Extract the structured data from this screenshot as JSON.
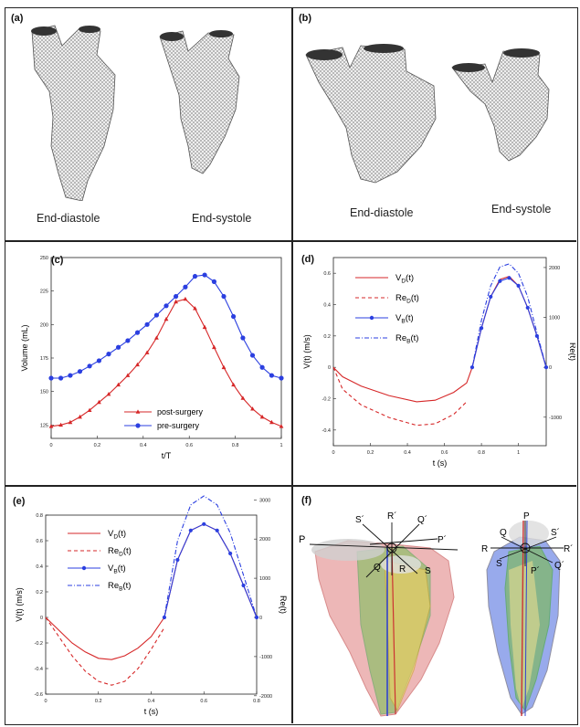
{
  "panels": {
    "a": {
      "label": "(a)",
      "captions": [
        "End-diastole",
        "End-systole"
      ]
    },
    "b": {
      "label": "(b)",
      "captions": [
        "End-diastole",
        "End-systole"
      ]
    },
    "c": {
      "label": "(c)"
    },
    "d": {
      "label": "(d)"
    },
    "e": {
      "label": "(e)"
    },
    "f": {
      "label": "(f)"
    }
  },
  "colors": {
    "red": "#d62728",
    "blue": "#2b3fe0",
    "mesh": "#555555"
  },
  "chart_data": [
    {
      "id": "c",
      "type": "line",
      "xlabel": "t/T",
      "ylabel": "Volume (mL)",
      "xlim": [
        0,
        1
      ],
      "ylim": [
        115,
        250
      ],
      "xticks": [
        "0",
        "0.2",
        "0.4",
        "0.6",
        "0.8",
        "1"
      ],
      "yticks": [
        "125",
        "150",
        "175",
        "200",
        "225",
        "250"
      ],
      "x": [
        0,
        0.042,
        0.083,
        0.125,
        0.167,
        0.208,
        0.25,
        0.292,
        0.333,
        0.375,
        0.417,
        0.458,
        0.5,
        0.542,
        0.583,
        0.625,
        0.667,
        0.708,
        0.75,
        0.792,
        0.833,
        0.875,
        0.917,
        0.958,
        1
      ],
      "series": [
        {
          "name": "post-surgery",
          "color": "#d62728",
          "marker": "triangle",
          "values": [
            124,
            125,
            127,
            131,
            136,
            142,
            148,
            155,
            162,
            170,
            179,
            190,
            204,
            217,
            219,
            212,
            198,
            183,
            168,
            155,
            145,
            137,
            131,
            127,
            124
          ]
        },
        {
          "name": "pre-surgery",
          "color": "#2b3fe0",
          "marker": "circle",
          "values": [
            160,
            160,
            162,
            165,
            169,
            173,
            178,
            183,
            188,
            194,
            200,
            207,
            214,
            221,
            228,
            236,
            237,
            232,
            221,
            206,
            190,
            177,
            168,
            162,
            160
          ]
        }
      ],
      "legend": "bottom-right"
    },
    {
      "id": "d",
      "type": "line",
      "xlabel": "t (s)",
      "ylabel": "V(t) (m/s)",
      "y2label": "Re(t)",
      "xlim": [
        0,
        1.15
      ],
      "ylim": [
        -0.5,
        0.7
      ],
      "y2lim": [
        -1400,
        2500
      ],
      "xticks": [
        "0",
        "0.2",
        "0.4",
        "0.6",
        "0.8",
        "1"
      ],
      "yticks": [
        "-0.4",
        "-0.2",
        "0",
        "0.2",
        "0.4",
        "0.6"
      ],
      "y2ticks": [
        "-1000",
        "0",
        "1000",
        "2000"
      ],
      "series": [
        {
          "name": "V_D(t)",
          "color": "#d62728",
          "style": "solid",
          "x": [
            0,
            0.05,
            0.15,
            0.3,
            0.45,
            0.55,
            0.65,
            0.72,
            0.75,
            0.8,
            0.85,
            0.9,
            0.95,
            1.0,
            1.05,
            1.1,
            1.15
          ],
          "values": [
            0,
            -0.06,
            -0.12,
            -0.18,
            -0.22,
            -0.21,
            -0.16,
            -0.1,
            0.0,
            0.25,
            0.45,
            0.56,
            0.58,
            0.52,
            0.38,
            0.2,
            0.0
          ]
        },
        {
          "name": "Re_D(t)",
          "color": "#d62728",
          "style": "dashed",
          "x": [
            0,
            0.05,
            0.15,
            0.3,
            0.45,
            0.55,
            0.65,
            0.72
          ],
          "values": [
            0,
            -0.14,
            -0.24,
            -0.32,
            -0.37,
            -0.36,
            -0.3,
            -0.22
          ]
        },
        {
          "name": "V_B(t)",
          "color": "#2b3fe0",
          "style": "solid-marker",
          "x": [
            0.75,
            0.8,
            0.85,
            0.9,
            0.95,
            1.0,
            1.05,
            1.1,
            1.15
          ],
          "values": [
            0.0,
            0.25,
            0.45,
            0.55,
            0.57,
            0.52,
            0.38,
            0.2,
            0.0
          ]
        },
        {
          "name": "Re_B(t)",
          "color": "#2b3fe0",
          "style": "dashdot",
          "x": [
            0.75,
            0.8,
            0.85,
            0.9,
            0.95,
            1.0,
            1.05,
            1.1,
            1.15
          ],
          "values": [
            0.0,
            0.3,
            0.52,
            0.64,
            0.66,
            0.6,
            0.45,
            0.22,
            0.0
          ]
        }
      ],
      "legend": "top-left"
    },
    {
      "id": "e",
      "type": "line",
      "xlabel": "t (s)",
      "ylabel": "V(t) (m/s)",
      "y2label": "Re(t)",
      "xlim": [
        0,
        0.8
      ],
      "ylim": [
        -0.6,
        0.8
      ],
      "xticks": [
        "0",
        "0.2",
        "0.4",
        "0.6",
        "0.8"
      ],
      "yticks": [
        "-0.6",
        "-0.4",
        "-0.2",
        "0",
        "0.2",
        "0.4",
        "0.6",
        "0.8"
      ],
      "y2ticks": [
        "-2000",
        "-1000",
        "0",
        "1000",
        "2000",
        "3000"
      ],
      "series": [
        {
          "name": "V_D(t)",
          "color": "#d62728",
          "style": "solid",
          "x": [
            0,
            0.05,
            0.1,
            0.15,
            0.2,
            0.25,
            0.3,
            0.35,
            0.4,
            0.45,
            0.5,
            0.55,
            0.6,
            0.65,
            0.7,
            0.75,
            0.8
          ],
          "values": [
            0,
            -0.1,
            -0.2,
            -0.27,
            -0.32,
            -0.33,
            -0.3,
            -0.24,
            -0.15,
            0.0,
            0.45,
            0.68,
            0.73,
            0.68,
            0.5,
            0.25,
            0.0
          ]
        },
        {
          "name": "Re_D(t)",
          "color": "#d62728",
          "style": "dashed",
          "x": [
            0,
            0.05,
            0.1,
            0.15,
            0.2,
            0.25,
            0.3,
            0.35,
            0.4,
            0.45
          ],
          "values": [
            0,
            -0.15,
            -0.3,
            -0.42,
            -0.5,
            -0.53,
            -0.5,
            -0.4,
            -0.25,
            -0.08
          ]
        },
        {
          "name": "V_B(t)",
          "color": "#2b3fe0",
          "style": "solid-marker",
          "x": [
            0.45,
            0.5,
            0.55,
            0.6,
            0.65,
            0.7,
            0.75,
            0.8
          ],
          "values": [
            0.0,
            0.45,
            0.68,
            0.73,
            0.68,
            0.5,
            0.25,
            0.0
          ]
        },
        {
          "name": "Re_B(t)",
          "color": "#2b3fe0",
          "style": "dashdot",
          "x": [
            0.45,
            0.5,
            0.55,
            0.6,
            0.65,
            0.7,
            0.75,
            0.8
          ],
          "values": [
            0.0,
            0.6,
            0.88,
            0.95,
            0.88,
            0.66,
            0.33,
            0.0
          ]
        }
      ],
      "legend": "top-left"
    }
  ],
  "legend_d": [
    {
      "base": "V",
      "sub": "D",
      "tail": "(t)",
      "color": "#d62728",
      "style": "solid"
    },
    {
      "base": "Re",
      "sub": "D",
      "tail": "(t)",
      "color": "#d62728",
      "style": "dashed"
    },
    {
      "base": "V",
      "sub": "B",
      "tail": "(t)",
      "color": "#2b3fe0",
      "style": "solid-marker"
    },
    {
      "base": "Re",
      "sub": "B",
      "tail": "(t)",
      "color": "#2b3fe0",
      "style": "dashdot"
    }
  ],
  "legend_c": [
    "post-surgery",
    "pre-surgery"
  ],
  "axes_labels_f": {
    "left": [
      "P",
      "S´",
      "R´",
      "Q´",
      "P´",
      "Q",
      "R",
      "S"
    ],
    "right": [
      "P",
      "Q",
      "S´",
      "R",
      "R´",
      "S",
      "P´",
      "Q´"
    ]
  }
}
